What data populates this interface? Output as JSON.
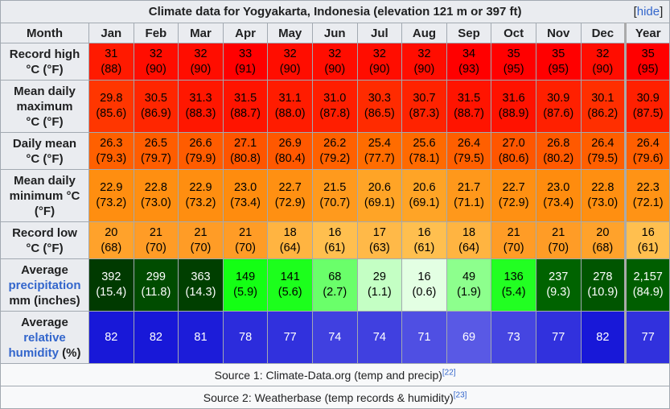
{
  "title": "Climate data for Yogyakarta, Indonesia (elevation 121 m or 397 ft)",
  "hide_label": "hide",
  "header": {
    "month_label": "Month",
    "months": [
      "Jan",
      "Feb",
      "Mar",
      "Apr",
      "May",
      "Jun",
      "Jul",
      "Aug",
      "Sep",
      "Oct",
      "Nov",
      "Dec"
    ],
    "year_label": "Year"
  },
  "rows": [
    {
      "label_lines": [
        "Record high",
        "°C (°F)"
      ],
      "height": 46,
      "values": [
        [
          "31",
          "(88)"
        ],
        [
          "32",
          "(90)"
        ],
        [
          "32",
          "(90)"
        ],
        [
          "33",
          "(91)"
        ],
        [
          "32",
          "(90)"
        ],
        [
          "32",
          "(90)"
        ],
        [
          "32",
          "(90)"
        ],
        [
          "32",
          "(90)"
        ],
        [
          "34",
          "(93)"
        ],
        [
          "35",
          "(95)"
        ],
        [
          "35",
          "(95)"
        ],
        [
          "32",
          "(90)"
        ],
        [
          "35",
          "(95)"
        ]
      ],
      "colors": [
        "#ff1a00",
        "#ff0d00",
        "#ff0d00",
        "#ff0000",
        "#ff0d00",
        "#ff0d00",
        "#ff0d00",
        "#ff0d00",
        "#ff0000",
        "#ff0000",
        "#ff0000",
        "#ff0d00",
        "#ff0000"
      ],
      "text_color": "#000000"
    },
    {
      "label_lines": [
        "Mean daily",
        "maximum",
        "°C (°F)"
      ],
      "height": 65,
      "values": [
        [
          "29.8",
          "(85.6)"
        ],
        [
          "30.5",
          "(86.9)"
        ],
        [
          "31.3",
          "(88.3)"
        ],
        [
          "31.5",
          "(88.7)"
        ],
        [
          "31.1",
          "(88.0)"
        ],
        [
          "31.0",
          "(87.8)"
        ],
        [
          "30.3",
          "(86.5)"
        ],
        [
          "30.7",
          "(87.3)"
        ],
        [
          "31.5",
          "(88.7)"
        ],
        [
          "31.6",
          "(88.9)"
        ],
        [
          "30.9",
          "(87.6)"
        ],
        [
          "30.1",
          "(86.2)"
        ],
        [
          "30.9",
          "(87.5)"
        ]
      ],
      "colors": [
        "#ff3600",
        "#ff2600",
        "#ff1700",
        "#ff1400",
        "#ff1c00",
        "#ff1e00",
        "#ff2b00",
        "#ff2300",
        "#ff1400",
        "#ff1200",
        "#ff2000",
        "#ff2f00",
        "#ff2000"
      ],
      "text_color": "#000000"
    },
    {
      "label_lines": [
        "Daily mean",
        "°C (°F)"
      ],
      "height": 46,
      "values": [
        [
          "26.3",
          "(79.3)"
        ],
        [
          "26.5",
          "(79.7)"
        ],
        [
          "26.6",
          "(79.9)"
        ],
        [
          "27.1",
          "(80.8)"
        ],
        [
          "26.9",
          "(80.4)"
        ],
        [
          "26.2",
          "(79.2)"
        ],
        [
          "25.4",
          "(77.7)"
        ],
        [
          "25.6",
          "(78.1)"
        ],
        [
          "26.4",
          "(79.5)"
        ],
        [
          "27.0",
          "(80.6)"
        ],
        [
          "26.8",
          "(80.2)"
        ],
        [
          "26.4",
          "(79.5)"
        ],
        [
          "26.4",
          "(79.6)"
        ]
      ],
      "colors": [
        "#ff6000",
        "#ff5d00",
        "#ff5c00",
        "#ff5500",
        "#ff5800",
        "#ff6100",
        "#ff6c00",
        "#ff6a00",
        "#ff5f00",
        "#ff5600",
        "#ff5900",
        "#ff5f00",
        "#ff5f00"
      ],
      "text_color": "#000000"
    },
    {
      "label_lines": [
        "Mean daily",
        "minimum °C",
        "(°F)"
      ],
      "height": 65,
      "values": [
        [
          "22.9",
          "(73.2)"
        ],
        [
          "22.8",
          "(73.0)"
        ],
        [
          "22.9",
          "(73.2)"
        ],
        [
          "23.0",
          "(73.4)"
        ],
        [
          "22.7",
          "(72.9)"
        ],
        [
          "21.5",
          "(70.7)"
        ],
        [
          "20.6",
          "(69.1)"
        ],
        [
          "20.6",
          "(69.1)"
        ],
        [
          "21.7",
          "(71.1)"
        ],
        [
          "22.7",
          "(72.9)"
        ],
        [
          "23.0",
          "(73.4)"
        ],
        [
          "22.8",
          "(73.0)"
        ],
        [
          "22.3",
          "(72.1)"
        ]
      ],
      "colors": [
        "#ff8e10",
        "#ff8f11",
        "#ff8e10",
        "#ff8c0e",
        "#ff9012",
        "#ff9a1d",
        "#ffa426",
        "#ffa426",
        "#ff981b",
        "#ff9012",
        "#ff8c0e",
        "#ff8f11",
        "#ff9315"
      ],
      "text_color": "#000000"
    },
    {
      "label_lines": [
        "Record low",
        "°C (°F)"
      ],
      "height": 46,
      "values": [
        [
          "20",
          "(68)"
        ],
        [
          "21",
          "(70)"
        ],
        [
          "21",
          "(70)"
        ],
        [
          "21",
          "(70)"
        ],
        [
          "18",
          "(64)"
        ],
        [
          "16",
          "(61)"
        ],
        [
          "17",
          "(63)"
        ],
        [
          "16",
          "(61)"
        ],
        [
          "18",
          "(64)"
        ],
        [
          "21",
          "(70)"
        ],
        [
          "21",
          "(70)"
        ],
        [
          "20",
          "(68)"
        ],
        [
          "16",
          "(61)"
        ]
      ],
      "colors": [
        "#ffa22b",
        "#ff9c26",
        "#ff9c26",
        "#ff9c26",
        "#ffb441",
        "#ffbf4f",
        "#ffb948",
        "#ffbf4f",
        "#ffb441",
        "#ff9c26",
        "#ff9c26",
        "#ffa22b",
        "#ffbf4f"
      ],
      "text_color": "#000000"
    },
    {
      "label_lines": [
        "Average",
        "precipitation",
        "mm (inches)"
      ],
      "label_link_line": 1,
      "height": 65,
      "values": [
        [
          "392",
          "(15.4)"
        ],
        [
          "299",
          "(11.8)"
        ],
        [
          "363",
          "(14.3)"
        ],
        [
          "149",
          "(5.9)"
        ],
        [
          "141",
          "(5.6)"
        ],
        [
          "68",
          "(2.7)"
        ],
        [
          "29",
          "(1.1)"
        ],
        [
          "16",
          "(0.6)"
        ],
        [
          "49",
          "(1.9)"
        ],
        [
          "136",
          "(5.4)"
        ],
        [
          "237",
          "(9.3)"
        ],
        [
          "278",
          "(10.9)"
        ],
        [
          "2,157",
          "(84.9)"
        ]
      ],
      "colors": [
        "#003a00",
        "#004c00",
        "#003f00",
        "#14ff14",
        "#1cff1c",
        "#6aff6a",
        "#c4ffc4",
        "#e3ffe3",
        "#8dff8d",
        "#22ff22",
        "#006300",
        "#005500",
        "#005e00"
      ],
      "text_colors": [
        "#ffffff",
        "#ffffff",
        "#ffffff",
        "#000000",
        "#000000",
        "#000000",
        "#000000",
        "#000000",
        "#000000",
        "#000000",
        "#ffffff",
        "#ffffff",
        "#ffffff"
      ]
    },
    {
      "label_lines": [
        "Average",
        "relative",
        "humidity (%)"
      ],
      "label_link_line": 1,
      "label_link_word_line2": true,
      "height": 65,
      "values": [
        [
          "82"
        ],
        [
          "82"
        ],
        [
          "81"
        ],
        [
          "78"
        ],
        [
          "77"
        ],
        [
          "74"
        ],
        [
          "74"
        ],
        [
          "71"
        ],
        [
          "69"
        ],
        [
          "73"
        ],
        [
          "77"
        ],
        [
          "82"
        ],
        [
          "77"
        ]
      ],
      "colors": [
        "#1818d8",
        "#1818d8",
        "#1c1cd9",
        "#2c2cdc",
        "#3131dd",
        "#4040e0",
        "#4040e0",
        "#4f4fe3",
        "#5959e5",
        "#4545e1",
        "#3131dd",
        "#1818d8",
        "#3131dd"
      ],
      "text_color": "#ffffff"
    }
  ],
  "sources": [
    {
      "text": "Source 1: Climate-Data.org (temp and precip)",
      "ref": "[22]"
    },
    {
      "text": "Source 2: Weatherbase (temp records & humidity)",
      "ref": "[23]"
    }
  ]
}
